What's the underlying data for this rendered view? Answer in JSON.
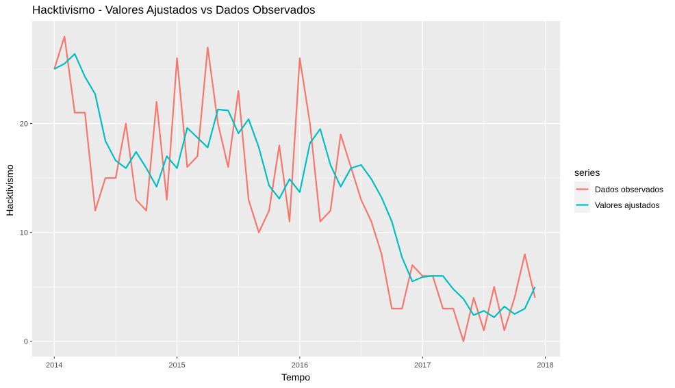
{
  "chart_data": {
    "type": "line",
    "title": "Hacktivismo - Valores Ajustados vs Dados Observados",
    "xlabel": "Tempo",
    "ylabel": "Hacktivismo",
    "xlim": [
      2013.82,
      2018.12
    ],
    "ylim": [
      -1.4,
      29.4
    ],
    "x_ticks": [
      2014,
      2015,
      2016,
      2017,
      2018
    ],
    "x_tick_labels": [
      "2014",
      "2015",
      "2016",
      "2017",
      "2018"
    ],
    "y_ticks": [
      0,
      10,
      20
    ],
    "y_tick_labels": [
      "0",
      "10",
      "20"
    ],
    "grid": true,
    "legend": {
      "title": "series",
      "position": "right"
    },
    "x": [
      2014.0,
      2014.0833,
      2014.1667,
      2014.25,
      2014.3333,
      2014.4167,
      2014.5,
      2014.5833,
      2014.6667,
      2014.75,
      2014.8333,
      2014.9167,
      2015.0,
      2015.0833,
      2015.1667,
      2015.25,
      2015.3333,
      2015.4167,
      2015.5,
      2015.5833,
      2015.6667,
      2015.75,
      2015.8333,
      2015.9167,
      2016.0,
      2016.0833,
      2016.1667,
      2016.25,
      2016.3333,
      2016.4167,
      2016.5,
      2016.5833,
      2016.6667,
      2016.75,
      2016.8333,
      2016.9167,
      2017.0,
      2017.0833,
      2017.1667,
      2017.25,
      2017.3333,
      2017.4167,
      2017.5,
      2017.5833,
      2017.6667,
      2017.75,
      2017.8333,
      2017.9167
    ],
    "series": [
      {
        "name": "Dados observados",
        "color": "#F8766D",
        "values": [
          25,
          28,
          21,
          21,
          12,
          15,
          15,
          20,
          13,
          12,
          22,
          13,
          26,
          16,
          17,
          27,
          20,
          16,
          23,
          13,
          10,
          12,
          18,
          11,
          26,
          20,
          11,
          12,
          19,
          16,
          13,
          11,
          8,
          3,
          3,
          7,
          6,
          6,
          3,
          3,
          0,
          4,
          1,
          5,
          1,
          4,
          8,
          4
        ]
      },
      {
        "name": "Valores ajustados",
        "color": "#00BFC4",
        "values": [
          25,
          25.5,
          26.4,
          24.3,
          22.7,
          18.4,
          16.6,
          15.9,
          17.4,
          15.9,
          14.2,
          17.0,
          15.9,
          19.6,
          18.7,
          17.8,
          21.3,
          21.2,
          19.1,
          20.4,
          17.8,
          14.3,
          13.1,
          14.9,
          13.7,
          18.2,
          19.5,
          16.2,
          14.2,
          15.9,
          16.2,
          14.9,
          13.2,
          11.0,
          7.7,
          5.5,
          5.9,
          6.0,
          6.0,
          4.8,
          3.9,
          2.4,
          2.8,
          2.2,
          3.2,
          2.5,
          3.0,
          5.0
        ]
      }
    ]
  }
}
